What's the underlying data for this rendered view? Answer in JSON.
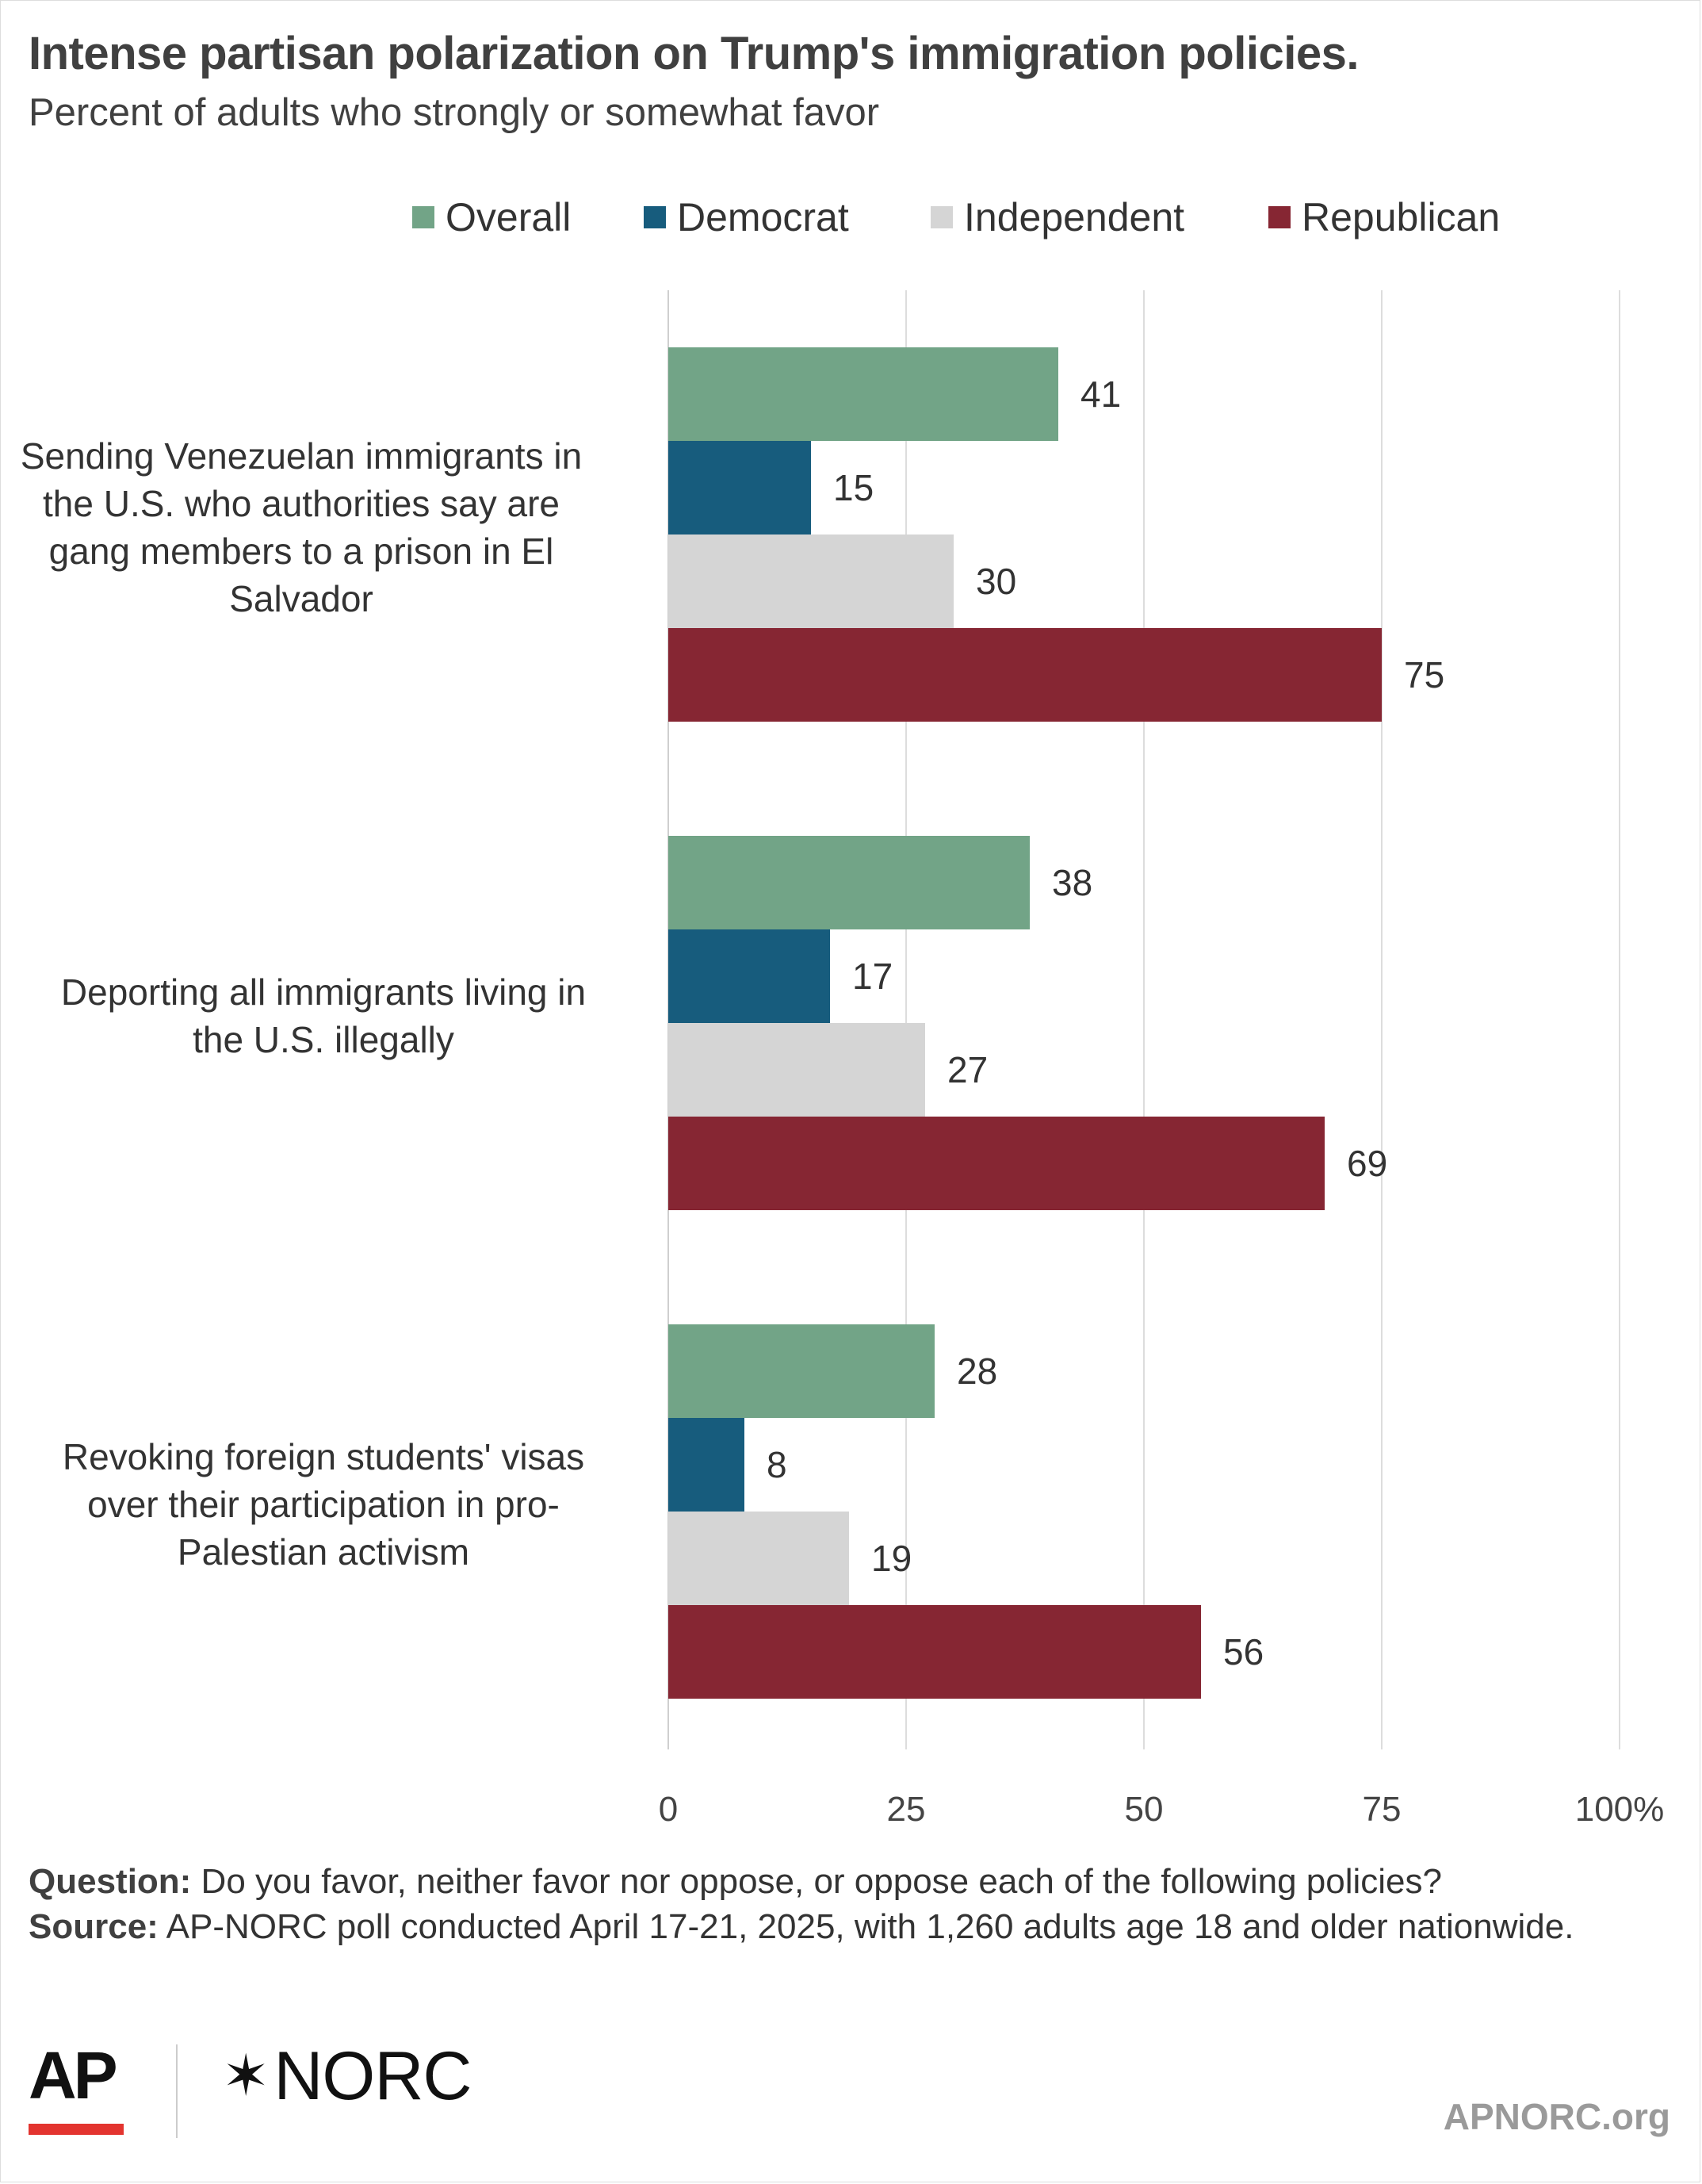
{
  "chart_data": {
    "type": "bar",
    "orientation": "horizontal",
    "title": "Intense partisan polarization on Trump's immigration policies.",
    "subtitle": "Percent of adults who strongly or somewhat favor",
    "categories": [
      "Sending Venezuelan immigrants in the U.S. who authorities say are gang members to a prison in El Salvador",
      "Deporting all immigrants living in the U.S. illegally",
      "Revoking foreign students' visas over their participation in pro-Palestian activism"
    ],
    "series": [
      {
        "name": "Overall",
        "color": "#72a487",
        "values": [
          41,
          38,
          28
        ]
      },
      {
        "name": "Democrat",
        "color": "#175c7d",
        "values": [
          15,
          17,
          8
        ]
      },
      {
        "name": "Independent",
        "color": "#d5d5d5",
        "values": [
          30,
          27,
          19
        ]
      },
      {
        "name": "Republican",
        "color": "#862633",
        "values": [
          75,
          69,
          56
        ]
      }
    ],
    "xlim": [
      0,
      100
    ],
    "x_ticks": [
      "0",
      "25",
      "50",
      "75",
      "100%"
    ],
    "grid": true,
    "legend_position": "top"
  },
  "category_lines": [
    [
      "Sending Venezuelan immigrants in",
      "the U.S. who authorities say are",
      "gang members to a prison in El",
      "Salvador"
    ],
    [
      "Deporting all immigrants living in",
      "the U.S. illegally"
    ],
    [
      "Revoking foreign students' visas",
      "over their participation in pro-",
      "Palestian activism"
    ]
  ],
  "notes": {
    "question_label": "Question:",
    "question_text": " Do you favor, neither favor nor oppose, or oppose each of the following policies?",
    "source_label": "Source:",
    "source_text": " AP-NORC poll conducted April 17-21, 2025, with 1,260 adults age 18 and older nationwide."
  },
  "branding": {
    "ap_logo": "AP",
    "norc_logo": "NORC",
    "norc_icon": "star-burst-icon",
    "site": "APNORC.org",
    "ap_accent": "#e3342f"
  }
}
